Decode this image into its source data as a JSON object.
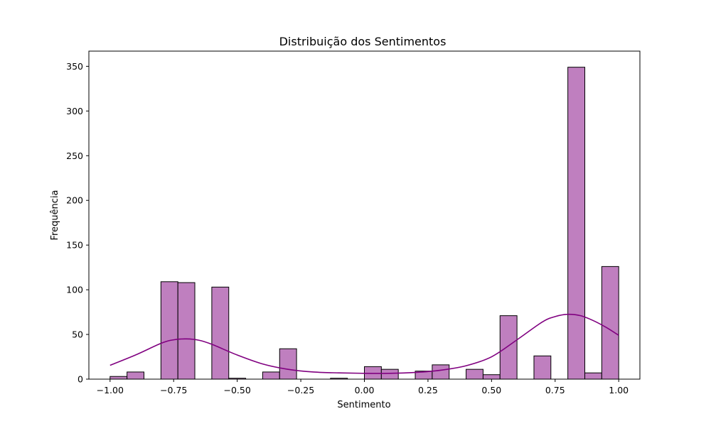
{
  "chart_data": {
    "type": "bar",
    "title": "Distribuição dos Sentimentos",
    "xlabel": "Sentimento",
    "ylabel": "Frequência",
    "xlim": [
      -1.0833,
      1.0833
    ],
    "ylim": [
      0,
      367
    ],
    "x_ticks": [
      -1.0,
      -0.75,
      -0.5,
      -0.25,
      0.0,
      0.25,
      0.5,
      0.75,
      1.0
    ],
    "x_tick_labels": [
      "−1.00",
      "−0.75",
      "−0.50",
      "−0.25",
      "0.00",
      "0.25",
      "0.50",
      "0.75",
      "1.00"
    ],
    "y_ticks": [
      0,
      50,
      100,
      150,
      200,
      250,
      300,
      350
    ],
    "y_tick_labels": [
      "0",
      "50",
      "100",
      "150",
      "200",
      "250",
      "300",
      "350"
    ],
    "bin_edges": [
      -1.0,
      -0.9333,
      -0.8667,
      -0.8,
      -0.7333,
      -0.6667,
      -0.6,
      -0.5333,
      -0.4667,
      -0.4,
      -0.3333,
      -0.2667,
      -0.2,
      -0.1333,
      -0.0667,
      0.0,
      0.0667,
      0.1333,
      0.2,
      0.2667,
      0.3333,
      0.4,
      0.4667,
      0.5333,
      0.6,
      0.6667,
      0.7333,
      0.8,
      0.8667,
      0.9333,
      1.0
    ],
    "counts": [
      3,
      8,
      0,
      109,
      108,
      0,
      103,
      1,
      0,
      8,
      34,
      0,
      0,
      1,
      0,
      14,
      11,
      0,
      9,
      16,
      0,
      11,
      5,
      71,
      0,
      26,
      0,
      349,
      7,
      126
    ],
    "kde": {
      "x": [
        -1.0,
        -0.9,
        -0.8,
        -0.75,
        -0.7,
        -0.65,
        -0.6,
        -0.5,
        -0.4,
        -0.3,
        -0.2,
        -0.1,
        0.0,
        0.1,
        0.2,
        0.3,
        0.4,
        0.5,
        0.6,
        0.7,
        0.75,
        0.8,
        0.85,
        0.9,
        0.95,
        1.0
      ],
      "y": [
        15.5,
        27,
        40,
        44,
        45,
        43.5,
        39,
        27,
        17,
        11,
        8,
        7,
        6.5,
        6.5,
        7.5,
        10,
        15,
        25,
        44,
        64,
        70,
        72.5,
        71,
        65.5,
        58,
        49
      ]
    },
    "colors": {
      "bar_fill": "#bf7fbf",
      "bar_edge": "#000000",
      "kde_line": "#800080"
    },
    "grid": false,
    "legend": "none"
  }
}
